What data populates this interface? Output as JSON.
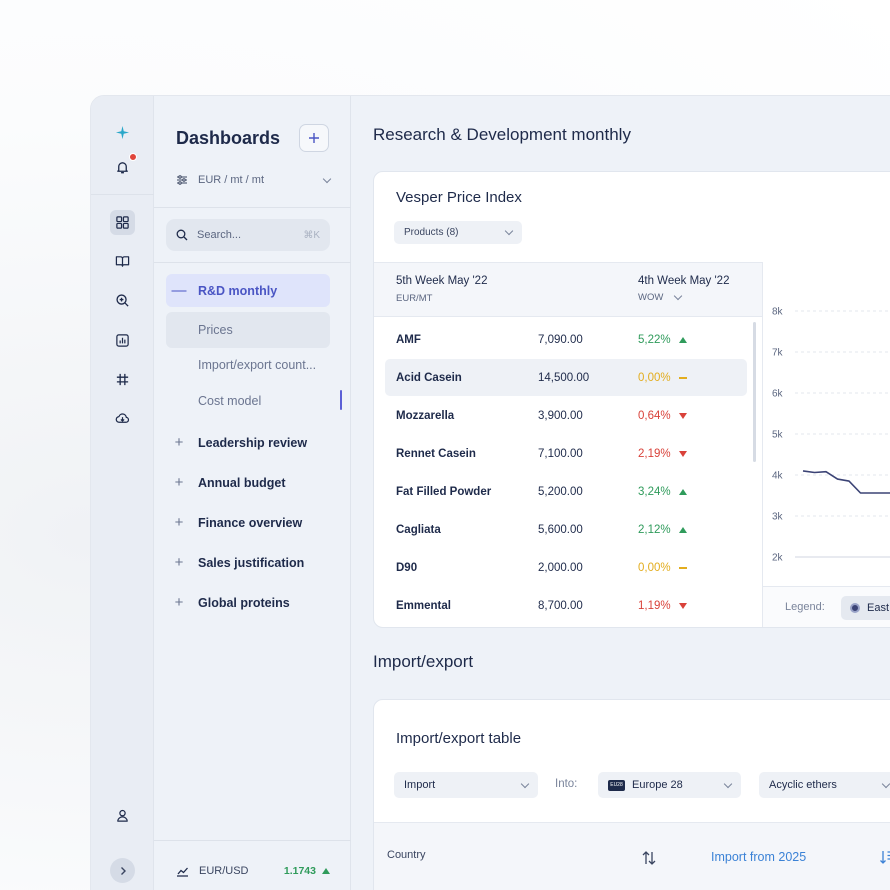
{
  "rail": {
    "icons": [
      "sparkle-logo-icon",
      "bell-icon",
      "dashboard-grid-icon",
      "book-icon",
      "search-zoom-icon",
      "report-chart-icon",
      "hashtag-icon",
      "cloud-download-icon",
      "user-icon",
      "chevron-right-icon"
    ]
  },
  "panel": {
    "title": "Dashboards",
    "currency": "EUR / mt / mt",
    "search_placeholder": "Search...",
    "search_shortcut": "⌘K",
    "active_item": "R&D monthly",
    "sub_items": [
      "Prices",
      "Import/export count...",
      "Cost model"
    ],
    "items": [
      "Leadership review",
      "Annual budget",
      "Finance overview",
      "Sales justification",
      "Global proteins"
    ],
    "fx_pair": "EUR/USD",
    "fx_rate": "1.1743"
  },
  "main": {
    "section1_title": "Research & Development monthly",
    "price_card": {
      "title": "Vesper Price Index",
      "filter": "Products (8)",
      "col1_title": "5th Week May '22",
      "col1_sub": "EUR/MT",
      "col2_title": "4th Week May '22",
      "col2_sub": "WOW",
      "rows": [
        {
          "name": "AMF",
          "value": "7,090.00",
          "pct": "5,22%",
          "trend": "up"
        },
        {
          "name": "Acid Casein",
          "value": "14,500.00",
          "pct": "0,00%",
          "trend": "flat"
        },
        {
          "name": "Mozzarella",
          "value": "3,900.00",
          "pct": "0,64%",
          "trend": "down"
        },
        {
          "name": "Rennet Casein",
          "value": "7,100.00",
          "pct": "2,19%",
          "trend": "down"
        },
        {
          "name": "Fat Filled Powder",
          "value": "5,200.00",
          "pct": "3,24%",
          "trend": "up"
        },
        {
          "name": "Cagliata",
          "value": "5,600.00",
          "pct": "2,12%",
          "trend": "up"
        },
        {
          "name": "D90",
          "value": "2,000.00",
          "pct": "0,00%",
          "trend": "flat"
        },
        {
          "name": "Emmental",
          "value": "8,700.00",
          "pct": "1,19%",
          "trend": "down"
        }
      ],
      "legend_label": "Legend:",
      "legend_item": "East"
    },
    "section2_title": "Import/export",
    "ie_card": {
      "title": "Import/export table",
      "type_select": "Import",
      "into_label": "Into:",
      "region_flag": "EU28",
      "region_select": "Europe 28",
      "product_select": "Acyclic ethers",
      "col_country": "Country",
      "col_import": "Import from 2025"
    }
  },
  "colors": {
    "accent": "#4a55c4",
    "up": "#2f9b5b",
    "down": "#d9423a",
    "flat": "#e3ad1e",
    "link": "#3b82d6",
    "line": "#3b4375"
  },
  "chart_data": {
    "type": "line",
    "title": "",
    "y_ticks": [
      "8k",
      "7k",
      "6k",
      "5k",
      "4k",
      "3k",
      "2k"
    ],
    "ylim": [
      2000,
      8000
    ],
    "series": [
      {
        "name": "East",
        "x": [
          0,
          1,
          2,
          3,
          4,
          5,
          6,
          7,
          8,
          9,
          10,
          11,
          12
        ],
        "values": [
          4100,
          4060,
          4080,
          3900,
          3850,
          3560,
          3560,
          3560,
          3560,
          3540,
          3530,
          3500,
          3500
        ]
      }
    ],
    "grid": true
  }
}
